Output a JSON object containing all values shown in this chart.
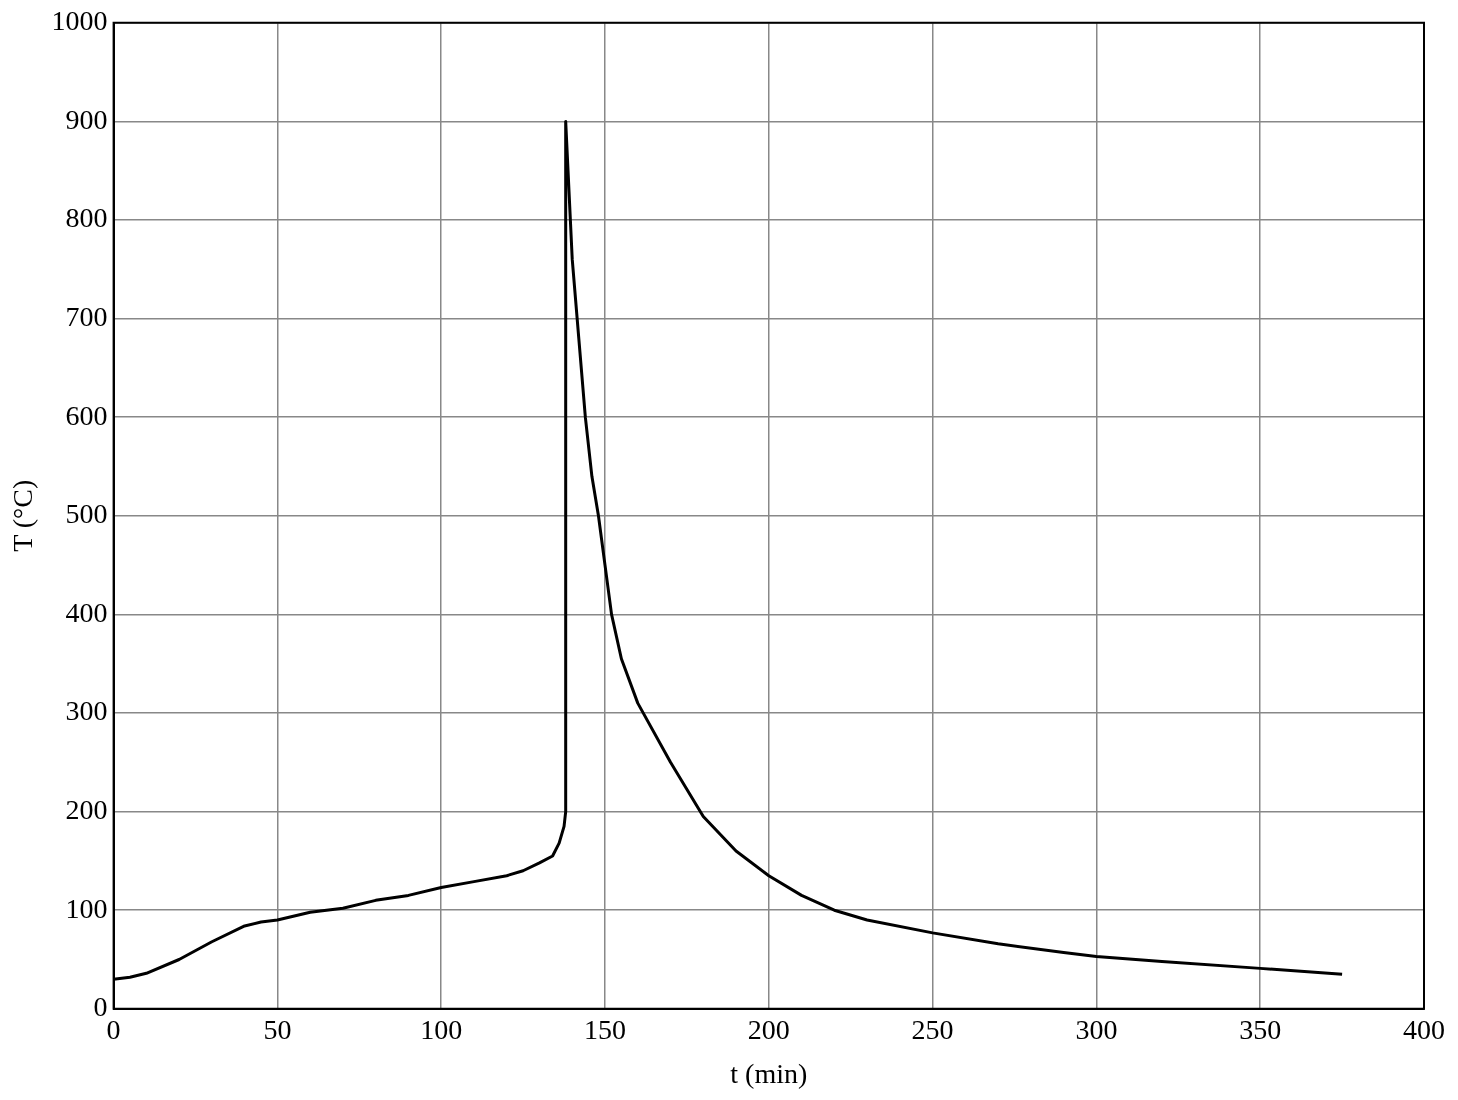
{
  "chart_data": {
    "type": "line",
    "xlabel": "t (min)",
    "ylabel": "T (°C)",
    "xlim": [
      0,
      400
    ],
    "xticks": [
      0,
      50,
      100,
      150,
      200,
      250,
      300,
      350,
      400
    ],
    "ylim": [
      0,
      1000
    ],
    "yticks": [
      0,
      100,
      200,
      300,
      400,
      500,
      600,
      700,
      800,
      900,
      1000
    ],
    "grid": true,
    "legend": false,
    "marker": "none",
    "line_style": "solid",
    "series": [
      {
        "color": "#000000",
        "x": [
          0,
          5,
          10,
          20,
          30,
          40,
          45,
          50,
          60,
          70,
          80,
          90,
          100,
          110,
          120,
          125,
          130,
          134,
          136,
          137.5,
          138,
          138,
          140,
          142,
          144,
          146,
          148,
          150,
          152,
          155,
          160,
          170,
          180,
          190,
          200,
          210,
          220,
          230,
          250,
          270,
          290,
          300,
          320,
          350,
          375
        ],
        "values": [
          30,
          32,
          36,
          50,
          68,
          84,
          88,
          90,
          98,
          102,
          110,
          115,
          123,
          129,
          135,
          140,
          148,
          155,
          168,
          185,
          200,
          900,
          760,
          680,
          600,
          540,
          500,
          450,
          400,
          355,
          310,
          250,
          195,
          160,
          135,
          115,
          100,
          90,
          77,
          66,
          57,
          53,
          48,
          41,
          35
        ]
      }
    ]
  }
}
